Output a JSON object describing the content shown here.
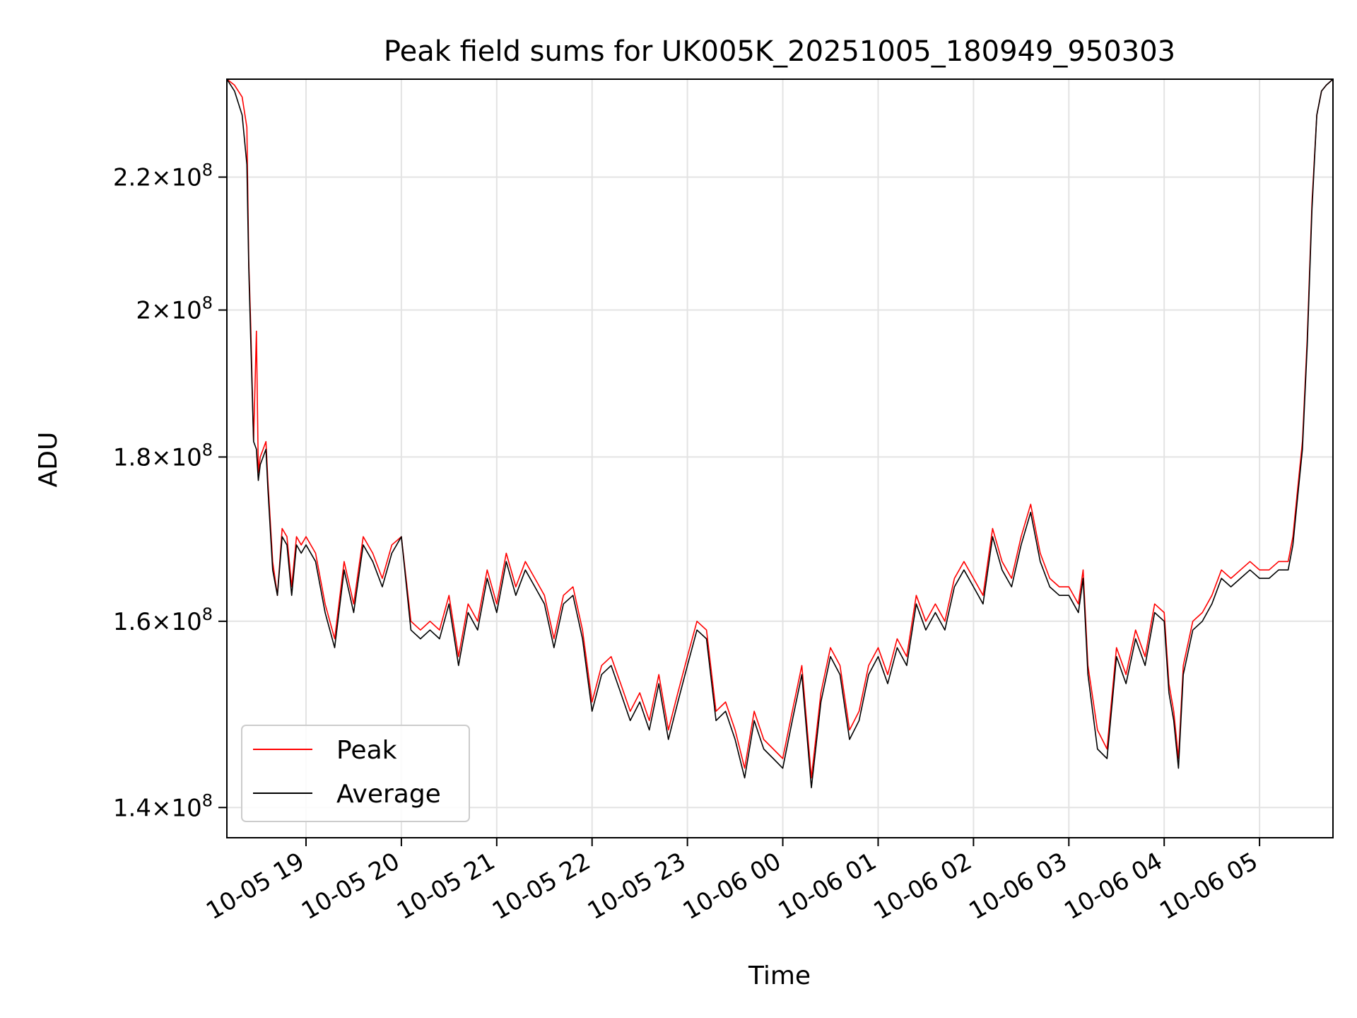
{
  "chart_data": {
    "type": "line",
    "title": "Peak field sums for UK005K_20251005_180949_950303",
    "xlabel": "Time",
    "ylabel": "ADU",
    "yscale": "log",
    "ylim": [
      137000000,
      236000000
    ],
    "xlim_hours": [
      18.17,
      5.77
    ],
    "grid": true,
    "legend_position": "lower-left",
    "x_ticks": [
      {
        "hour": 19,
        "label": "10-05 19"
      },
      {
        "hour": 20,
        "label": "10-05 20"
      },
      {
        "hour": 21,
        "label": "10-05 21"
      },
      {
        "hour": 22,
        "label": "10-05 22"
      },
      {
        "hour": 23,
        "label": "10-05 23"
      },
      {
        "hour": 24,
        "label": "10-06 00"
      },
      {
        "hour": 25,
        "label": "10-06 01"
      },
      {
        "hour": 26,
        "label": "10-06 02"
      },
      {
        "hour": 27,
        "label": "10-06 03"
      },
      {
        "hour": 28,
        "label": "10-06 04"
      },
      {
        "hour": 29,
        "label": "10-06 05"
      }
    ],
    "y_ticks": [
      {
        "value": 140000000,
        "mantissa": "1.4"
      },
      {
        "value": 160000000,
        "mantissa": "1.6"
      },
      {
        "value": 180000000,
        "mantissa": "1.8"
      },
      {
        "value": 200000000,
        "mantissa": "2"
      },
      {
        "value": 220000000,
        "mantissa": "2.2"
      }
    ],
    "tick_times": "×10",
    "tick_exponent": "8",
    "series": [
      {
        "name": "Peak",
        "color": "#ff0000",
        "x_hours": [
          18.17,
          18.25,
          18.33,
          18.38,
          18.4,
          18.42,
          18.45,
          18.48,
          18.5,
          18.52,
          18.55,
          18.58,
          18.6,
          18.65,
          18.7,
          18.75,
          18.8,
          18.85,
          18.9,
          18.95,
          19.0,
          19.1,
          19.2,
          19.3,
          19.4,
          19.5,
          19.6,
          19.7,
          19.8,
          19.9,
          20.0,
          20.1,
          20.2,
          20.3,
          20.4,
          20.5,
          20.6,
          20.7,
          20.8,
          20.9,
          21.0,
          21.1,
          21.2,
          21.3,
          21.4,
          21.5,
          21.6,
          21.7,
          21.8,
          21.9,
          22.0,
          22.1,
          22.2,
          22.3,
          22.4,
          22.5,
          22.6,
          22.7,
          22.8,
          22.9,
          23.0,
          23.1,
          23.2,
          23.3,
          23.4,
          23.5,
          23.6,
          23.7,
          23.8,
          23.9,
          24.0,
          24.1,
          24.2,
          24.3,
          24.4,
          24.5,
          24.6,
          24.7,
          24.8,
          24.9,
          25.0,
          25.1,
          25.2,
          25.3,
          25.4,
          25.5,
          25.6,
          25.7,
          25.8,
          25.9,
          26.0,
          26.1,
          26.2,
          26.3,
          26.4,
          26.5,
          26.6,
          26.7,
          26.8,
          26.9,
          27.0,
          27.1,
          27.15,
          27.2,
          27.3,
          27.4,
          27.5,
          27.6,
          27.7,
          27.8,
          27.9,
          28.0,
          28.05,
          28.1,
          28.15,
          28.2,
          28.3,
          28.4,
          28.5,
          28.6,
          28.7,
          28.8,
          28.9,
          29.0,
          29.1,
          29.2,
          29.3,
          29.35,
          29.4,
          29.45,
          29.5,
          29.55,
          29.6,
          29.65,
          29.7,
          29.77
        ],
        "values": [
          236000000,
          235000000,
          233000000,
          228000000,
          207000000,
          198000000,
          182000000,
          197000000,
          178000000,
          180000000,
          181000000,
          182000000,
          177000000,
          167000000,
          163000000,
          171000000,
          170000000,
          164000000,
          170000000,
          169000000,
          170000000,
          168000000,
          162000000,
          158000000,
          167000000,
          162000000,
          170000000,
          168000000,
          165000000,
          169000000,
          170000000,
          160000000,
          159000000,
          160000000,
          159000000,
          163000000,
          156000000,
          162000000,
          160000000,
          166000000,
          162000000,
          168000000,
          164000000,
          167000000,
          165000000,
          163000000,
          158000000,
          163000000,
          164000000,
          159000000,
          151000000,
          155000000,
          156000000,
          153000000,
          150000000,
          152000000,
          149000000,
          154000000,
          148000000,
          152000000,
          156000000,
          160000000,
          159000000,
          150000000,
          151000000,
          148000000,
          144000000,
          150000000,
          147000000,
          146000000,
          145000000,
          150000000,
          155000000,
          143000000,
          152000000,
          157000000,
          155000000,
          148000000,
          150000000,
          155000000,
          157000000,
          154000000,
          158000000,
          156000000,
          163000000,
          160000000,
          162000000,
          160000000,
          165000000,
          167000000,
          165000000,
          163000000,
          171000000,
          167000000,
          165000000,
          170000000,
          174000000,
          168000000,
          165000000,
          164000000,
          164000000,
          162000000,
          166000000,
          155000000,
          148000000,
          146000000,
          157000000,
          154000000,
          159000000,
          156000000,
          162000000,
          161000000,
          153000000,
          150000000,
          145000000,
          155000000,
          160000000,
          161000000,
          163000000,
          166000000,
          165000000,
          166000000,
          167000000,
          166000000,
          166000000,
          167000000,
          167000000,
          170000000,
          176000000,
          182000000,
          196000000,
          216000000,
          230000000,
          234000000,
          235000000,
          236000000
        ]
      },
      {
        "name": "Average",
        "color": "#000000",
        "x_hours": [
          18.17,
          18.25,
          18.33,
          18.38,
          18.4,
          18.42,
          18.45,
          18.48,
          18.5,
          18.52,
          18.55,
          18.58,
          18.6,
          18.65,
          18.7,
          18.75,
          18.8,
          18.85,
          18.9,
          18.95,
          19.0,
          19.1,
          19.2,
          19.3,
          19.4,
          19.5,
          19.6,
          19.7,
          19.8,
          19.9,
          20.0,
          20.1,
          20.2,
          20.3,
          20.4,
          20.5,
          20.6,
          20.7,
          20.8,
          20.9,
          21.0,
          21.1,
          21.2,
          21.3,
          21.4,
          21.5,
          21.6,
          21.7,
          21.8,
          21.9,
          22.0,
          22.1,
          22.2,
          22.3,
          22.4,
          22.5,
          22.6,
          22.7,
          22.8,
          22.9,
          23.0,
          23.1,
          23.2,
          23.3,
          23.4,
          23.5,
          23.6,
          23.7,
          23.8,
          23.9,
          24.0,
          24.1,
          24.2,
          24.3,
          24.4,
          24.5,
          24.6,
          24.7,
          24.8,
          24.9,
          25.0,
          25.1,
          25.2,
          25.3,
          25.4,
          25.5,
          25.6,
          25.7,
          25.8,
          25.9,
          26.0,
          26.1,
          26.2,
          26.3,
          26.4,
          26.5,
          26.6,
          26.7,
          26.8,
          26.9,
          27.0,
          27.1,
          27.15,
          27.2,
          27.3,
          27.4,
          27.5,
          27.6,
          27.7,
          27.8,
          27.9,
          28.0,
          28.05,
          28.1,
          28.15,
          28.2,
          28.3,
          28.4,
          28.5,
          28.6,
          28.7,
          28.8,
          28.9,
          29.0,
          29.1,
          29.2,
          29.3,
          29.35,
          29.4,
          29.45,
          29.5,
          29.55,
          29.6,
          29.65,
          29.7,
          29.77
        ],
        "values": [
          236000000,
          234000000,
          230000000,
          222000000,
          206000000,
          196000000,
          182000000,
          181000000,
          177000000,
          179000000,
          180000000,
          181000000,
          176000000,
          166000000,
          163000000,
          170000000,
          169000000,
          163000000,
          169000000,
          168000000,
          169000000,
          167000000,
          161000000,
          157000000,
          166000000,
          161000000,
          169000000,
          167000000,
          164000000,
          168000000,
          170000000,
          159000000,
          158000000,
          159000000,
          158000000,
          162000000,
          155000000,
          161000000,
          159000000,
          165000000,
          161000000,
          167000000,
          163000000,
          166000000,
          164000000,
          162000000,
          157000000,
          162000000,
          163000000,
          158000000,
          150000000,
          154000000,
          155000000,
          152000000,
          149000000,
          151000000,
          148000000,
          153000000,
          147000000,
          151000000,
          155000000,
          159000000,
          158000000,
          149000000,
          150000000,
          147000000,
          143000000,
          149000000,
          146000000,
          145000000,
          144000000,
          149000000,
          154000000,
          142000000,
          151000000,
          156000000,
          154000000,
          147000000,
          149000000,
          154000000,
          156000000,
          153000000,
          157000000,
          155000000,
          162000000,
          159000000,
          161000000,
          159000000,
          164000000,
          166000000,
          164000000,
          162000000,
          170000000,
          166000000,
          164000000,
          169000000,
          173000000,
          167000000,
          164000000,
          163000000,
          163000000,
          161000000,
          165000000,
          154000000,
          146000000,
          145000000,
          156000000,
          153000000,
          158000000,
          155000000,
          161000000,
          160000000,
          152000000,
          149000000,
          144000000,
          154000000,
          159000000,
          160000000,
          162000000,
          165000000,
          164000000,
          165000000,
          166000000,
          165000000,
          165000000,
          166000000,
          166000000,
          169000000,
          175000000,
          181000000,
          195000000,
          215000000,
          230000000,
          234000000,
          235000000,
          236000000
        ]
      }
    ]
  }
}
